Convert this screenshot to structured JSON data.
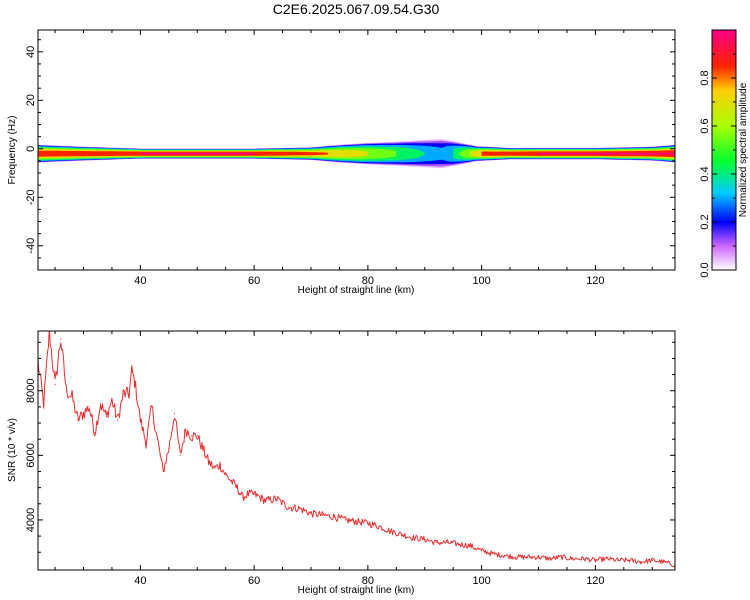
{
  "title": "C2E6.2025.067.09.54.G30",
  "chart_data": [
    {
      "type": "heatmap",
      "xlabel": "Height of straight line (km)",
      "ylabel": "Frequency (Hz)",
      "xlim": [
        22,
        134
      ],
      "ylim": [
        -50,
        49
      ],
      "xticks": [
        40,
        60,
        80,
        100,
        120
      ],
      "yticks": [
        -40,
        -20,
        0,
        20,
        40
      ],
      "colorbar": {
        "label": "Normalized spectral amplitude",
        "range": [
          0,
          1
        ],
        "ticks": [
          "0.0",
          "0.2",
          "0.4",
          "0.6",
          "0.8"
        ]
      },
      "band": {
        "center_freq_hz": -2,
        "halfwidth_hz": [
          [
            22,
            2.8
          ],
          [
            30,
            2.2
          ],
          [
            40,
            1.6
          ],
          [
            60,
            1.6
          ],
          [
            70,
            2.0
          ],
          [
            75,
            2.8
          ],
          [
            80,
            3.4
          ],
          [
            85,
            3.8
          ],
          [
            90,
            4.4
          ],
          [
            93,
            4.8
          ],
          [
            96,
            3.6
          ],
          [
            99,
            2.4
          ],
          [
            105,
            1.8
          ],
          [
            120,
            1.8
          ],
          [
            130,
            2.2
          ],
          [
            134,
            2.8
          ]
        ],
        "peak_amplitude": [
          [
            22,
            0.95
          ],
          [
            40,
            1.0
          ],
          [
            60,
            1.0
          ],
          [
            70,
            0.9
          ],
          [
            78,
            0.78
          ],
          [
            85,
            0.58
          ],
          [
            90,
            0.42
          ],
          [
            93,
            0.35
          ],
          [
            96,
            0.55
          ],
          [
            100,
            0.92
          ],
          [
            110,
            1.0
          ],
          [
            134,
            1.0
          ]
        ]
      }
    },
    {
      "type": "line",
      "xlabel": "Height of straight line (km)",
      "ylabel": "SNR (10 * v/v)",
      "xlim": [
        22,
        134
      ],
      "ylim": [
        2450,
        9850
      ],
      "xticks": [
        40,
        60,
        80,
        100,
        120
      ],
      "yticks": [
        4000,
        6000,
        8000
      ],
      "series": [
        {
          "color": "#e82e2e",
          "x": [
            22,
            23,
            24,
            25,
            26,
            27,
            28,
            29,
            30,
            31,
            32,
            33,
            34,
            35,
            36,
            37,
            38,
            38.5,
            39,
            40,
            41,
            42,
            43,
            44,
            45,
            46,
            47,
            48,
            49,
            50,
            51,
            52,
            53,
            54,
            55,
            56,
            57,
            58,
            59,
            60,
            62,
            64,
            66,
            68,
            70,
            72,
            74,
            76,
            78,
            80,
            82,
            84,
            86,
            88,
            90,
            92,
            94,
            96,
            98,
            100,
            102,
            104,
            106,
            108,
            110,
            112,
            114,
            116,
            118,
            120,
            122,
            124,
            126,
            128,
            130,
            132,
            134
          ],
          "y": [
            8900,
            7600,
            9800,
            8200,
            9600,
            8000,
            7800,
            7100,
            7300,
            7500,
            6700,
            7600,
            7200,
            7700,
            7100,
            7900,
            7900,
            8600,
            8300,
            7100,
            6400,
            7500,
            6500,
            5500,
            6200,
            7300,
            6000,
            6800,
            6600,
            6600,
            6200,
            5800,
            5600,
            5700,
            5400,
            5200,
            5000,
            4700,
            4800,
            4800,
            4600,
            4650,
            4400,
            4350,
            4200,
            4150,
            4100,
            4000,
            3950,
            3900,
            3800,
            3650,
            3550,
            3450,
            3400,
            3300,
            3300,
            3250,
            3200,
            3050,
            2950,
            2900,
            2850,
            2850,
            2850,
            2800,
            2850,
            2800,
            2800,
            2750,
            2800,
            2750,
            2750,
            2700,
            2750,
            2700,
            2600
          ]
        }
      ]
    }
  ]
}
